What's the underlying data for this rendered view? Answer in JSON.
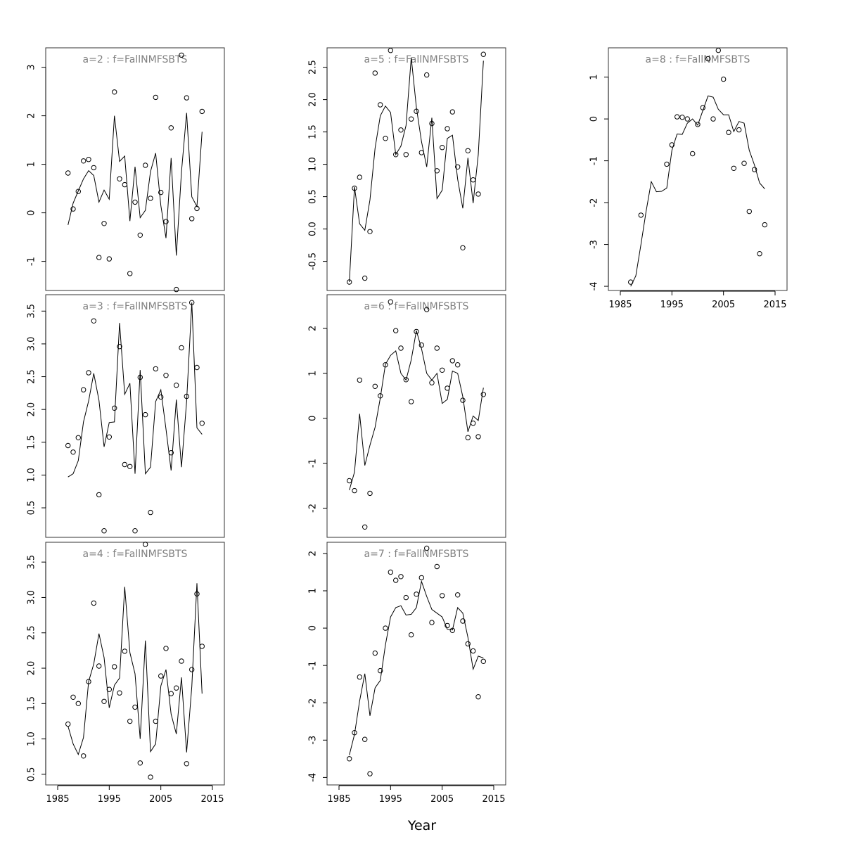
{
  "chart_data": {
    "type": "scatter",
    "xlabel": "Year",
    "x_ticks": [
      1985,
      1995,
      2005,
      2015
    ],
    "xlim": [
      1985,
      2015
    ],
    "years": [
      1987,
      1988,
      1989,
      1990,
      1991,
      1992,
      1993,
      1994,
      1995,
      1996,
      1997,
      1998,
      1999,
      2000,
      2001,
      2002,
      2003,
      2004,
      2005,
      2006,
      2007,
      2008,
      2009,
      2010,
      2011,
      2012,
      2013
    ],
    "panels": [
      {
        "title": "a=2 : f=FallNMFSBTS",
        "ylim": [
          -1.6,
          3.4
        ],
        "yticks": [
          -1,
          0,
          1,
          2,
          3
        ],
        "show_x_axis": false,
        "observed": [
          0.82,
          0.08,
          0.44,
          1.07,
          1.1,
          0.93,
          -0.92,
          -0.22,
          -0.95,
          2.49,
          0.7,
          0.58,
          -1.25,
          0.22,
          -0.46,
          0.98,
          0.3,
          2.38,
          0.42,
          -0.18,
          1.75,
          -1.58,
          3.25,
          2.37,
          -0.12,
          0.09,
          2.09
        ],
        "fitted": [
          -0.25,
          0.2,
          0.45,
          0.7,
          0.87,
          0.77,
          0.22,
          0.47,
          0.28,
          2.0,
          1.06,
          1.17,
          -0.17,
          0.95,
          -0.1,
          0.05,
          0.85,
          1.23,
          0.15,
          -0.52,
          1.13,
          -0.88,
          0.84,
          2.06,
          0.33,
          0.13,
          1.67
        ]
      },
      {
        "title": "a=3 : f=FallNMFSBTS",
        "ylim": [
          0.05,
          3.75
        ],
        "yticks": [
          0.5,
          1.0,
          1.5,
          2.0,
          2.5,
          3.0,
          3.5
        ],
        "show_x_axis": false,
        "observed": [
          1.45,
          1.35,
          1.57,
          2.3,
          2.56,
          3.35,
          0.7,
          0.15,
          1.58,
          2.02,
          2.96,
          1.16,
          1.13,
          0.15,
          2.49,
          1.92,
          0.43,
          2.62,
          2.19,
          2.52,
          1.34,
          2.37,
          2.94,
          2.2,
          3.63,
          2.64,
          1.79
        ],
        "fitted": [
          0.97,
          1.02,
          1.22,
          1.81,
          2.13,
          2.55,
          2.14,
          1.43,
          1.8,
          1.81,
          3.32,
          2.23,
          2.4,
          1.02,
          2.6,
          1.02,
          1.12,
          2.12,
          2.3,
          1.7,
          1.07,
          2.15,
          1.12,
          2.12,
          3.63,
          1.72,
          1.62
        ]
      },
      {
        "title": "a=4 : f=FallNMFSBTS",
        "ylim": [
          0.35,
          3.78
        ],
        "yticks": [
          0.5,
          1.0,
          1.5,
          2.0,
          2.5,
          3.0,
          3.5
        ],
        "show_x_axis": true,
        "observed": [
          1.21,
          1.59,
          1.5,
          0.76,
          1.81,
          2.92,
          2.03,
          1.53,
          1.7,
          2.02,
          1.65,
          2.24,
          1.25,
          1.45,
          0.66,
          3.75,
          0.46,
          1.25,
          1.89,
          2.28,
          1.64,
          1.72,
          2.1,
          0.65,
          1.98,
          3.05,
          2.31
        ],
        "fitted": [
          1.18,
          0.93,
          0.78,
          1.02,
          1.81,
          2.06,
          2.49,
          2.15,
          1.44,
          1.76,
          1.86,
          3.15,
          2.22,
          1.92,
          1.0,
          2.39,
          0.82,
          0.93,
          1.75,
          1.98,
          1.35,
          1.07,
          1.87,
          0.81,
          1.74,
          3.2,
          1.64
        ]
      },
      {
        "title": "a=5 : f=FallNMFSBTS",
        "ylim": [
          -0.95,
          2.8
        ],
        "yticks": [
          -0.5,
          0.0,
          0.5,
          1.0,
          1.5,
          2.0,
          2.5
        ],
        "show_x_axis": false,
        "observed": [
          -0.82,
          0.63,
          0.8,
          -0.76,
          -0.04,
          2.41,
          1.92,
          1.4,
          2.76,
          1.15,
          1.53,
          1.15,
          1.7,
          1.82,
          1.18,
          2.38,
          1.63,
          0.9,
          1.26,
          1.55,
          1.81,
          0.96,
          -0.29,
          1.21,
          0.76,
          0.54,
          2.7
        ],
        "fitted": [
          -0.82,
          0.65,
          0.08,
          -0.02,
          0.45,
          1.25,
          1.75,
          1.9,
          1.8,
          1.15,
          1.28,
          1.6,
          2.65,
          1.88,
          1.35,
          0.96,
          1.72,
          0.47,
          0.6,
          1.4,
          1.45,
          0.77,
          0.32,
          1.1,
          0.4,
          1.15,
          2.6
        ]
      },
      {
        "title": "a=6 : f=FallNMFSBTS",
        "ylim": [
          -2.65,
          2.75
        ],
        "yticks": [
          -2,
          -1,
          0,
          1,
          2
        ],
        "show_x_axis": false,
        "observed": [
          -1.39,
          -1.61,
          0.85,
          -2.42,
          -1.67,
          0.71,
          0.5,
          1.19,
          2.59,
          1.95,
          1.56,
          0.86,
          0.37,
          1.93,
          1.63,
          2.42,
          0.79,
          1.56,
          1.07,
          0.67,
          1.28,
          1.19,
          0.4,
          -0.43,
          -0.11,
          -0.41,
          0.53
        ],
        "fitted": [
          -1.6,
          -1.2,
          0.1,
          -1.05,
          -0.6,
          -0.2,
          0.45,
          1.2,
          1.4,
          1.5,
          1.0,
          0.85,
          1.3,
          1.95,
          1.55,
          1.0,
          0.85,
          1.0,
          0.33,
          0.42,
          1.05,
          1.0,
          0.48,
          -0.3,
          0.05,
          -0.05,
          0.68
        ]
      },
      {
        "title": "a=7 : f=FallNMFSBTS",
        "ylim": [
          -4.2,
          2.3
        ],
        "yticks": [
          -4,
          -3,
          -2,
          -1,
          0,
          1,
          2
        ],
        "show_x_axis": true,
        "observed": [
          -3.5,
          -2.8,
          -1.31,
          -2.98,
          -3.9,
          -0.67,
          -1.14,
          0.0,
          1.5,
          1.28,
          1.38,
          0.82,
          -0.18,
          0.91,
          1.35,
          2.14,
          0.15,
          1.65,
          0.87,
          0.07,
          -0.06,
          0.89,
          0.19,
          -0.42,
          -0.61,
          -1.84,
          -0.89
        ],
        "fitted": [
          -3.4,
          -2.85,
          -1.95,
          -1.22,
          -2.35,
          -1.6,
          -1.4,
          -0.45,
          0.3,
          0.55,
          0.6,
          0.35,
          0.37,
          0.55,
          1.25,
          0.85,
          0.5,
          0.4,
          0.3,
          -0.03,
          -0.05,
          0.55,
          0.4,
          -0.25,
          -1.1,
          -0.75,
          -0.8
        ]
      },
      {
        "title": "a=8 : f=FallNMFSBTS",
        "ylim": [
          -4.1,
          1.7
        ],
        "yticks": [
          -4,
          -3,
          -2,
          -1,
          0,
          1
        ],
        "show_x_axis": true,
        "observed": [
          -3.9,
          null,
          -2.3,
          null,
          null,
          null,
          null,
          -1.08,
          -0.62,
          0.05,
          0.04,
          0.0,
          -0.83,
          -0.13,
          0.27,
          1.44,
          0.0,
          1.64,
          0.95,
          -0.32,
          -1.18,
          -0.26,
          -1.06,
          -2.21,
          -1.21,
          -3.22,
          -2.53
        ],
        "fitted": [
          -4.0,
          -3.75,
          -3.0,
          -2.2,
          -1.5,
          -1.74,
          -1.73,
          -1.65,
          -0.75,
          -0.36,
          -0.37,
          -0.1,
          0.0,
          -0.15,
          0.2,
          0.55,
          0.52,
          0.23,
          0.1,
          0.1,
          -0.3,
          -0.06,
          -0.1,
          -0.75,
          -1.1,
          -1.53,
          -1.67
        ]
      }
    ]
  }
}
